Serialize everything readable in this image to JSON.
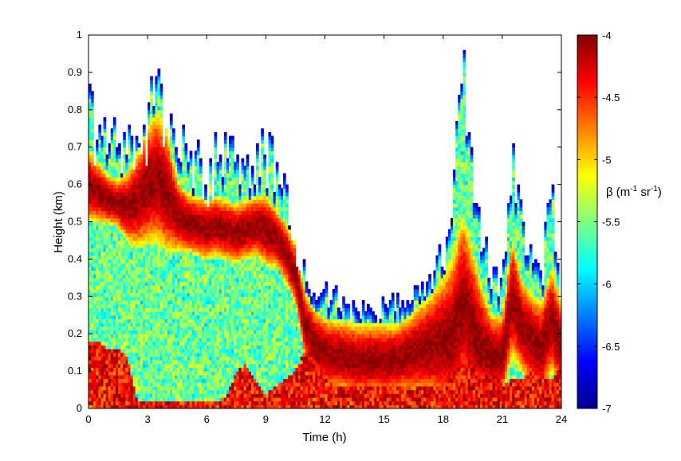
{
  "chart_data": {
    "type": "heatmap",
    "title": "",
    "xlabel": "Time (h)",
    "ylabel": "Height (km)",
    "xlim": [
      0,
      24
    ],
    "ylim": [
      0,
      1
    ],
    "xticks": [
      "0",
      "3",
      "6",
      "9",
      "12",
      "15",
      "18",
      "21",
      "24"
    ],
    "yticks": [
      "0",
      "0.1",
      "0.2",
      "0.3",
      "0.4",
      "0.5",
      "0.6",
      "0.7",
      "0.8",
      "0.9",
      "1"
    ],
    "colorbar": {
      "label_main": "β (m",
      "label_sup1": "-1",
      "label_mid": " sr",
      "label_sup2": "-1",
      "label_end": ")",
      "range": [
        -7,
        -4
      ],
      "ticks": [
        "-4",
        "-4.5",
        "-5",
        "-5.5",
        "-6",
        "-6.5",
        "-7"
      ],
      "colormap": "jet"
    },
    "layers": {
      "time_h": [
        0,
        0.5,
        1,
        1.5,
        2,
        2.5,
        3,
        3.5,
        4,
        4.5,
        5,
        5.5,
        6,
        6.5,
        7,
        7.5,
        8,
        8.5,
        9,
        9.5,
        10,
        10.5,
        11,
        11.5,
        12,
        12.5,
        13,
        13.5,
        14,
        14.5,
        15,
        15.5,
        16,
        16.5,
        17,
        17.5,
        18,
        18.5,
        19,
        19.5,
        20,
        20.5,
        21,
        21.5,
        22,
        22.5,
        23,
        23.5,
        24
      ],
      "signal_top_km": [
        0.77,
        0.74,
        0.7,
        0.68,
        0.66,
        0.7,
        0.76,
        0.82,
        0.78,
        0.7,
        0.66,
        0.64,
        0.62,
        0.65,
        0.66,
        0.64,
        0.66,
        0.68,
        0.7,
        0.64,
        0.55,
        0.46,
        0.36,
        0.32,
        0.3,
        0.29,
        0.28,
        0.27,
        0.27,
        0.27,
        0.28,
        0.28,
        0.29,
        0.31,
        0.33,
        0.36,
        0.4,
        0.55,
        0.88,
        0.6,
        0.46,
        0.34,
        0.33,
        0.68,
        0.5,
        0.38,
        0.36,
        0.58,
        0.3
      ],
      "strong_layer_center_km": [
        0.6,
        0.58,
        0.56,
        0.55,
        0.54,
        0.56,
        0.6,
        0.62,
        0.58,
        0.52,
        0.5,
        0.49,
        0.48,
        0.49,
        0.48,
        0.47,
        0.48,
        0.49,
        0.48,
        0.46,
        0.42,
        0.36,
        0.22,
        0.17,
        0.15,
        0.14,
        0.14,
        0.13,
        0.13,
        0.13,
        0.13,
        0.13,
        0.14,
        0.15,
        0.16,
        0.17,
        0.18,
        0.2,
        0.28,
        0.22,
        0.17,
        0.14,
        0.14,
        0.3,
        0.22,
        0.18,
        0.16,
        0.24,
        0.16
      ],
      "strong_layer_thickness_km": [
        0.12,
        0.1,
        0.08,
        0.08,
        0.12,
        0.16,
        0.2,
        0.22,
        0.2,
        0.12,
        0.1,
        0.1,
        0.1,
        0.1,
        0.1,
        0.1,
        0.1,
        0.1,
        0.12,
        0.1,
        0.1,
        0.1,
        0.12,
        0.12,
        0.12,
        0.12,
        0.12,
        0.12,
        0.12,
        0.12,
        0.12,
        0.12,
        0.12,
        0.14,
        0.16,
        0.18,
        0.22,
        0.26,
        0.3,
        0.26,
        0.18,
        0.14,
        0.14,
        0.2,
        0.16,
        0.16,
        0.16,
        0.18,
        0.16
      ],
      "surface_layer_top_km": [
        0.18,
        0.18,
        0.16,
        0.16,
        0.14,
        0.02,
        0.02,
        0.02,
        0.02,
        0.02,
        0.02,
        0.02,
        0.02,
        0.02,
        0.03,
        0.1,
        0.12,
        0.08,
        0.04,
        0.06,
        0.08,
        0.1,
        0.16,
        0.16,
        0.08,
        0.06,
        0.06,
        0.06,
        0.06,
        0.06,
        0.06,
        0.06,
        0.06,
        0.06,
        0.06,
        0.06,
        0.06,
        0.1,
        0.12,
        0.18,
        0.16,
        0.14,
        0.06,
        0.08,
        0.08,
        0.1,
        0.1,
        0.08,
        0.12
      ]
    }
  }
}
